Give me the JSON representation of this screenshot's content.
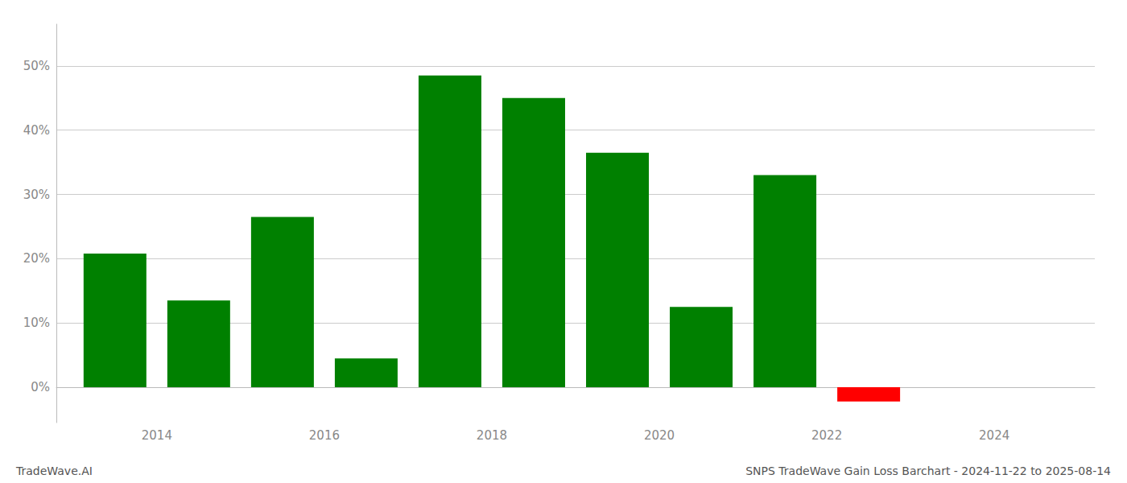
{
  "chart_data": {
    "type": "bar",
    "x": [
      2013.5,
      2014.5,
      2015.5,
      2016.5,
      2017.5,
      2018.5,
      2019.5,
      2020.5,
      2021.5,
      2022.5
    ],
    "values": [
      0.208,
      0.135,
      0.265,
      0.045,
      0.485,
      0.45,
      0.365,
      0.125,
      0.33,
      -0.022
    ],
    "colors": [
      "#008000",
      "#008000",
      "#008000",
      "#008000",
      "#008000",
      "#008000",
      "#008000",
      "#008000",
      "#008000",
      "#ff0000"
    ],
    "xlim": [
      2012.8,
      2025.2
    ],
    "xticks": [
      2014,
      2016,
      2018,
      2020,
      2022,
      2024
    ],
    "ylim": [
      -0.055,
      0.565
    ],
    "yticks": [
      {
        "value": 0.0,
        "label": "0%"
      },
      {
        "value": 0.1,
        "label": "10%"
      },
      {
        "value": 0.2,
        "label": "20%"
      },
      {
        "value": 0.3,
        "label": "30%"
      },
      {
        "value": 0.4,
        "label": "40%"
      },
      {
        "value": 0.5,
        "label": "50%"
      }
    ],
    "grid": true,
    "annotations": [
      "TradeWave.AI",
      "SNPS TradeWave Gain Loss Barchart - 2024-11-22 to 2025-08-14"
    ]
  }
}
